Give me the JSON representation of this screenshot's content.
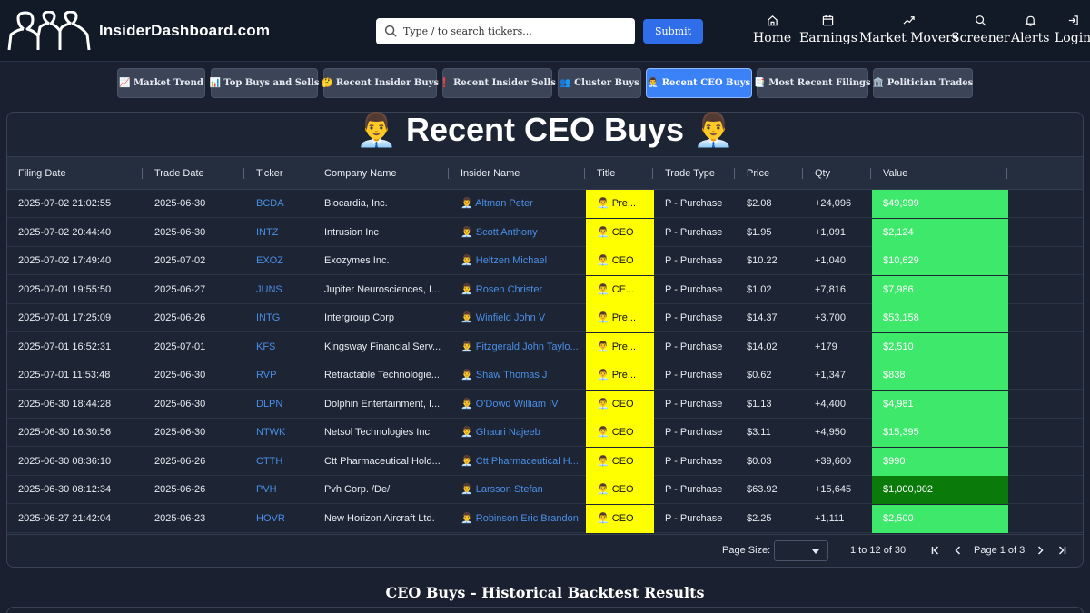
{
  "brand": {
    "name": "InsiderDashboard.com"
  },
  "search": {
    "placeholder": "Type / to search tickers...",
    "submit_label": "Submit"
  },
  "nav": [
    {
      "label": "Home",
      "icon": "home-icon"
    },
    {
      "label": "Earnings",
      "icon": "calendar-icon"
    },
    {
      "label": "Market Movers",
      "icon": "trending-up-icon"
    },
    {
      "label": "Screener",
      "icon": "search-icon"
    },
    {
      "label": "Alerts",
      "icon": "bell-icon"
    },
    {
      "label": "Login",
      "icon": "login-icon"
    }
  ],
  "tabs": [
    {
      "label": "📈 Market Trend"
    },
    {
      "label": "📊 Top Buys and Sells"
    },
    {
      "label": "🤔 Recent Insider Buys"
    },
    {
      "label": "❗ Recent Insider Sells"
    },
    {
      "label": "👥 Cluster Buys"
    },
    {
      "label": "👨‍💼 Recent CEO Buys",
      "active": true
    },
    {
      "label": "📑 Most Recent Filings"
    },
    {
      "label": "🏛️ Politician Trades"
    }
  ],
  "page_title": "👨‍💼 Recent CEO Buys 👨‍💼",
  "table": {
    "columns": [
      "Filing Date",
      "Trade Date",
      "Ticker",
      "Company Name",
      "Insider Name",
      "Title",
      "Trade Type",
      "Price",
      "Qty",
      "Value"
    ],
    "rows": [
      {
        "filing_date": "2025-07-02 21:02:55",
        "trade_date": "2025-06-30",
        "ticker": "BCDA",
        "company": "Biocardia, Inc.",
        "insider": "👨‍💼 Altman Peter",
        "title": "👨‍💼 Pre...",
        "trade_type": "P - Purchase",
        "price": "$2.08",
        "qty": "+24,096",
        "value": "$49,999"
      },
      {
        "filing_date": "2025-07-02 20:44:40",
        "trade_date": "2025-06-30",
        "ticker": "INTZ",
        "company": "Intrusion Inc",
        "insider": "👨‍💼 Scott Anthony",
        "title": "👨‍💼 CEO",
        "trade_type": "P - Purchase",
        "price": "$1.95",
        "qty": "+1,091",
        "value": "$2,124"
      },
      {
        "filing_date": "2025-07-02 17:49:40",
        "trade_date": "2025-07-02",
        "ticker": "EXOZ",
        "company": "Exozymes Inc.",
        "insider": "👨‍💼 Heltzen Michael",
        "title": "👨‍💼 CEO",
        "trade_type": "P - Purchase",
        "price": "$10.22",
        "qty": "+1,040",
        "value": "$10,629"
      },
      {
        "filing_date": "2025-07-01 19:55:50",
        "trade_date": "2025-06-27",
        "ticker": "JUNS",
        "company": "Jupiter Neurosciences, I...",
        "insider": "👨‍💼 Rosen Christer",
        "title": "👨‍💼 CE...",
        "trade_type": "P - Purchase",
        "price": "$1.02",
        "qty": "+7,816",
        "value": "$7,986"
      },
      {
        "filing_date": "2025-07-01 17:25:09",
        "trade_date": "2025-06-26",
        "ticker": "INTG",
        "company": "Intergroup Corp",
        "insider": "👨‍💼 Winfield John V",
        "title": "👨‍💼 Pre...",
        "trade_type": "P - Purchase",
        "price": "$14.37",
        "qty": "+3,700",
        "value": "$53,158"
      },
      {
        "filing_date": "2025-07-01 16:52:31",
        "trade_date": "2025-07-01",
        "ticker": "KFS",
        "company": "Kingsway Financial Serv...",
        "insider": "👨‍💼 Fitzgerald John Taylo...",
        "title": "👨‍💼 Pre...",
        "trade_type": "P - Purchase",
        "price": "$14.02",
        "qty": "+179",
        "value": "$2,510"
      },
      {
        "filing_date": "2025-07-01 11:53:48",
        "trade_date": "2025-06-30",
        "ticker": "RVP",
        "company": "Retractable Technologie...",
        "insider": "👨‍💼 Shaw Thomas J",
        "title": "👨‍💼 Pre...",
        "trade_type": "P - Purchase",
        "price": "$0.62",
        "qty": "+1,347",
        "value": "$838"
      },
      {
        "filing_date": "2025-06-30 18:44:28",
        "trade_date": "2025-06-30",
        "ticker": "DLPN",
        "company": "Dolphin Entertainment, I...",
        "insider": "👨‍💼 O'Dowd William IV",
        "title": "👨‍💼 CEO",
        "trade_type": "P - Purchase",
        "price": "$1.13",
        "qty": "+4,400",
        "value": "$4,981"
      },
      {
        "filing_date": "2025-06-30 16:30:56",
        "trade_date": "2025-06-30",
        "ticker": "NTWK",
        "company": "Netsol Technologies Inc",
        "insider": "👨‍💼 Ghauri Najeeb",
        "title": "👨‍💼 CEO",
        "trade_type": "P - Purchase",
        "price": "$3.11",
        "qty": "+4,950",
        "value": "$15,395"
      },
      {
        "filing_date": "2025-06-30 08:36:10",
        "trade_date": "2025-06-26",
        "ticker": "CTTH",
        "company": "Ctt Pharmaceutical Hold...",
        "insider": "👨‍💼 Ctt Pharmaceutical H...",
        "title": "👨‍💼 CEO",
        "trade_type": "P - Purchase",
        "price": "$0.03",
        "qty": "+39,600",
        "value": "$990"
      },
      {
        "filing_date": "2025-06-30 08:12:34",
        "trade_date": "2025-06-26",
        "ticker": "PVH",
        "company": "Pvh Corp. /De/",
        "insider": "👨‍💼 Larsson Stefan",
        "title": "👨‍💼 CEO",
        "trade_type": "P - Purchase",
        "price": "$63.92",
        "qty": "+15,645",
        "value": "$1,000,002",
        "big": true
      },
      {
        "filing_date": "2025-06-27 21:42:04",
        "trade_date": "2025-06-23",
        "ticker": "HOVR",
        "company": "New Horizon Aircraft Ltd.",
        "insider": "👨‍💼 Robinson Eric Brandon",
        "title": "👨‍💼 CEO",
        "trade_type": "P - Purchase",
        "price": "$2.25",
        "qty": "+1,111",
        "value": "$2,500"
      }
    ]
  },
  "pagination": {
    "page_size_label": "Page Size:",
    "range": "1 to 12 of 30",
    "page_label": "Page 1 of 3"
  },
  "backtest_title": "CEO Buys - Historical Backtest Results",
  "colors": {
    "title_highlight": "#ffff00",
    "value_green": "#3ee86a",
    "value_dark_green": "#0a7a0a",
    "link_blue": "#4a8fe7",
    "active_tab": "#3b82f6"
  }
}
